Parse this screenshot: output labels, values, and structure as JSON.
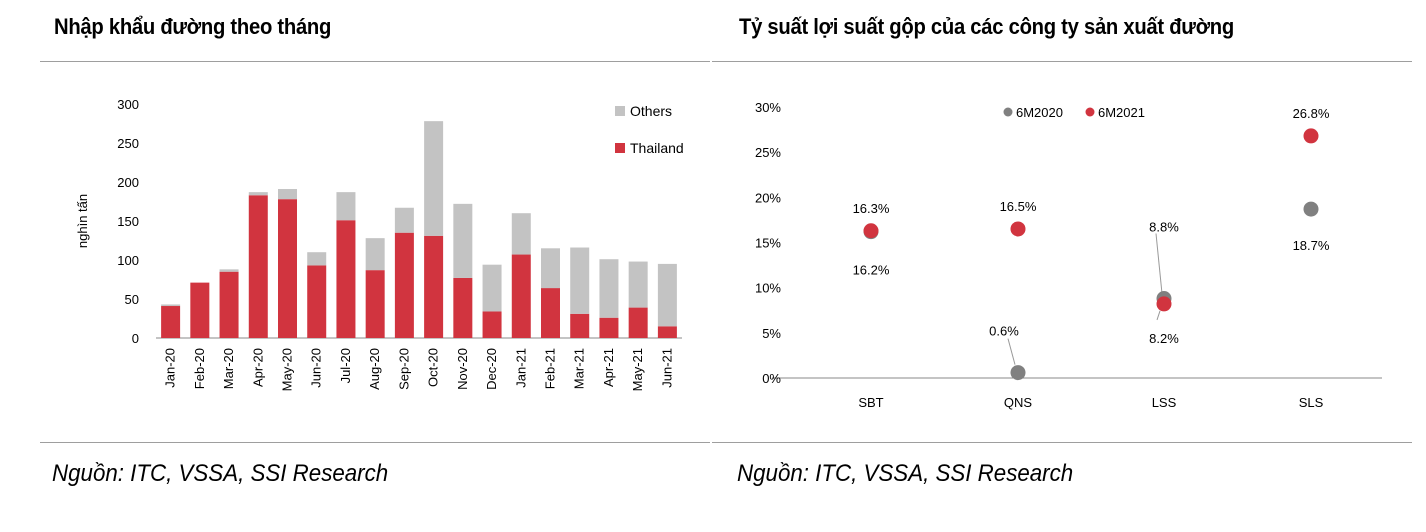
{
  "left_panel": {
    "title": "Nhập khẩu đường theo tháng",
    "source": "Nguồn: ITC, VSSA, SSI Research"
  },
  "right_panel": {
    "title": "Tỷ suất lợi suất gộp của các công ty sản xuất đường",
    "source": "Nguồn: ITC, VSSA, SSI Research"
  },
  "colors": {
    "thailand": "#d1343f",
    "others": "#c3c3c3",
    "gray_dot": "#808080",
    "red_dot": "#d1343f"
  },
  "chart_data": [
    {
      "type": "bar",
      "stacked": true,
      "title": "Nhập khẩu đường theo tháng",
      "ylabel": "nghìn tấn",
      "xlabel": "",
      "ylim": [
        0,
        300
      ],
      "yticks": [
        0,
        50,
        100,
        150,
        200,
        250,
        300
      ],
      "legend_position": "top-right",
      "categories": [
        "Jan-20",
        "Feb-20",
        "Mar-20",
        "Apr-20",
        "May-20",
        "Jun-20",
        "Jul-20",
        "Aug-20",
        "Sep-20",
        "Oct-20",
        "Nov-20",
        "Dec-20",
        "Jan-21",
        "Feb-21",
        "Mar-21",
        "Apr-21",
        "May-21",
        "Jun-21"
      ],
      "series": [
        {
          "name": "Thailand",
          "values": [
            41,
            71,
            85,
            183,
            178,
            93,
            151,
            87,
            135,
            131,
            77,
            34,
            107,
            64,
            31,
            26,
            39,
            15
          ]
        },
        {
          "name": "Others",
          "values": [
            2,
            0,
            3,
            4,
            13,
            17,
            36,
            41,
            32,
            147,
            95,
            60,
            53,
            51,
            85,
            75,
            59,
            80
          ]
        }
      ]
    },
    {
      "type": "scatter",
      "title": "Tỷ suất lợi suất gộp của các công ty sản xuất đường",
      "xlabel": "",
      "ylabel": "",
      "ylim": [
        0,
        30
      ],
      "yticks": [
        "0%",
        "5%",
        "10%",
        "15%",
        "20%",
        "25%",
        "30%"
      ],
      "legend_position": "top",
      "categories": [
        "SBT",
        "QNS",
        "LSS",
        "SLS"
      ],
      "series": [
        {
          "name": "6M2020",
          "values": [
            16.2,
            0.6,
            8.8,
            18.7
          ],
          "labels": [
            "16.2%",
            "0.6%",
            "8.8%",
            "18.7%"
          ]
        },
        {
          "name": "6M2021",
          "values": [
            16.3,
            16.5,
            8.2,
            26.8
          ],
          "labels": [
            "16.3%",
            "16.5%",
            "8.2%",
            "26.8%"
          ]
        }
      ]
    }
  ]
}
